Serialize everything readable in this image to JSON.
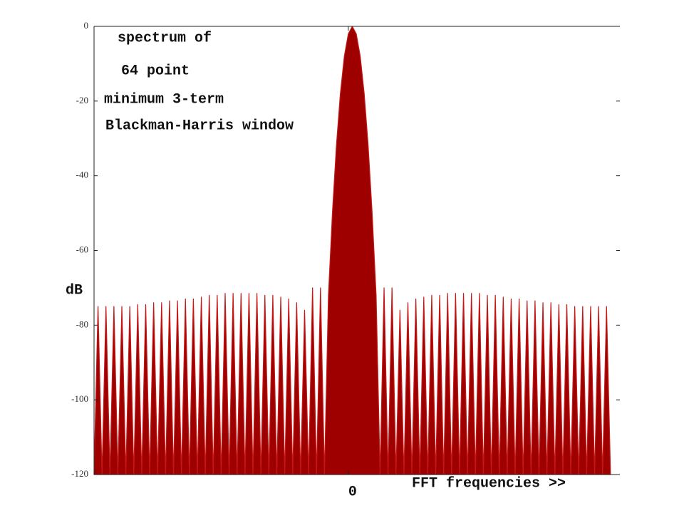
{
  "chart_data": {
    "type": "area",
    "annotations": [
      "spectrum of",
      "64 point",
      "minimum 3-term",
      "Blackman-Harris window"
    ],
    "ylabel": "dB",
    "xlabel": "FFT frequencies >>",
    "color": "#9e0000",
    "xlim": [
      -32,
      34
    ],
    "xticks": [
      0
    ],
    "ylim": [
      -120,
      0
    ],
    "yticks": [
      0,
      -20,
      -40,
      -60,
      -80,
      -100,
      -120
    ],
    "x": [
      -32,
      -31.5,
      -31,
      -30.5,
      -30,
      -29.5,
      -29,
      -28.5,
      -28,
      -27.5,
      -27,
      -26.5,
      -26,
      -25.5,
      -25,
      -24.5,
      -24,
      -23.5,
      -23,
      -22.5,
      -22,
      -21.5,
      -21,
      -20.5,
      -20,
      -19.5,
      -19,
      -18.5,
      -18,
      -17.5,
      -17,
      -16.5,
      -16,
      -15.5,
      -15,
      -14.5,
      -14,
      -13.5,
      -13,
      -12.5,
      -12,
      -11.5,
      -11,
      -10.5,
      -10,
      -9.5,
      -9,
      -8.5,
      -8,
      -7.5,
      -7,
      -6.5,
      -6,
      -5.5,
      -5,
      -4.5,
      -4,
      -3.5,
      -3,
      -2.5,
      -2,
      -1.5,
      -1,
      -0.5,
      0,
      0.5,
      1,
      1.5,
      2,
      2.5,
      3,
      3.5,
      4,
      4.5,
      5,
      5.5,
      6,
      6.5,
      7,
      7.5,
      8,
      8.5,
      9,
      9.5,
      10,
      10.5,
      11,
      11.5,
      12,
      12.5,
      13,
      13.5,
      14,
      14.5,
      15,
      15.5,
      16,
      16.5,
      17,
      17.5,
      18,
      18.5,
      19,
      19.5,
      20,
      20.5,
      21,
      21.5,
      22,
      22.5,
      23,
      23.5,
      24,
      24.5,
      25,
      25.5,
      26,
      26.5,
      27,
      27.5,
      28,
      28.5,
      29,
      29.5,
      30,
      30.5,
      31,
      31.5,
      32,
      32.5,
      33
    ],
    "values": [
      -120,
      -75,
      -120,
      -75,
      -120,
      -75,
      -120,
      -75,
      -120,
      -75,
      -120,
      -74.5,
      -120,
      -74.5,
      -120,
      -74,
      -120,
      -74,
      -120,
      -73.5,
      -120,
      -73.5,
      -120,
      -73,
      -120,
      -73,
      -120,
      -72.5,
      -120,
      -72,
      -120,
      -72,
      -120,
      -71.5,
      -120,
      -71.5,
      -120,
      -71.5,
      -120,
      -71.5,
      -120,
      -71.5,
      -120,
      -72,
      -120,
      -72,
      -120,
      -72.5,
      -120,
      -73,
      -120,
      -74,
      -120,
      -76,
      -120,
      -70,
      -120,
      -70,
      -120,
      -72,
      -50,
      -32,
      -18,
      -8,
      -2,
      0,
      -2,
      -8,
      -18,
      -32,
      -50,
      -72,
      -120,
      -70,
      -120,
      -70,
      -120,
      -76,
      -120,
      -74,
      -120,
      -73,
      -120,
      -72.5,
      -120,
      -72,
      -120,
      -72,
      -120,
      -71.5,
      -120,
      -71.5,
      -120,
      -71.5,
      -120,
      -71.5,
      -120,
      -71.5,
      -120,
      -72,
      -120,
      -72,
      -120,
      -72.5,
      -120,
      -73,
      -120,
      -73,
      -120,
      -73.5,
      -120,
      -73.5,
      -120,
      -74,
      -120,
      -74,
      -120,
      -74.5,
      -120,
      -74.5,
      -120,
      -75,
      -120,
      -75,
      -120,
      -75,
      -120,
      -75,
      -120,
      -75,
      -120
    ]
  }
}
